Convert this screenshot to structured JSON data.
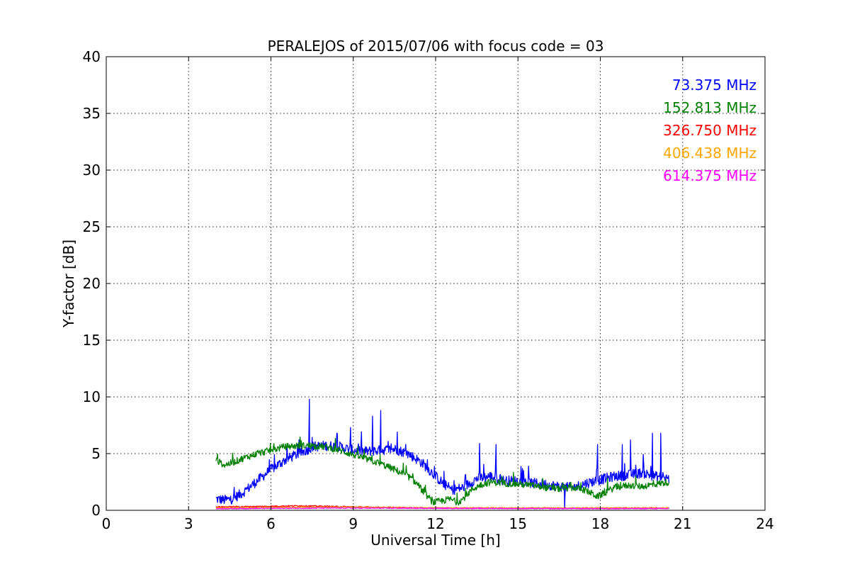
{
  "chart_data": {
    "type": "line",
    "title": "PERALEJOS of 2015/07/06 with focus code = 03",
    "xlabel": "Universal Time [h]",
    "ylabel": "Y-factor [dB]",
    "xlim": [
      0,
      24
    ],
    "ylim": [
      0,
      40
    ],
    "xticks": [
      0,
      3,
      6,
      9,
      12,
      15,
      18,
      21,
      24
    ],
    "yticks": [
      0,
      5,
      10,
      15,
      20,
      25,
      30,
      35,
      40
    ],
    "grid": true,
    "legend_position": "top-right",
    "series": [
      {
        "name": "73.375 MHz",
        "color": "#0000ff",
        "noise": 0.45,
        "x": [
          4.0,
          4.3,
          4.6,
          5.0,
          5.5,
          6.0,
          6.5,
          7.0,
          7.3,
          7.5,
          8.0,
          8.5,
          9.0,
          9.5,
          10.0,
          10.5,
          11.0,
          11.5,
          12.0,
          12.3,
          12.6,
          13.0,
          13.5,
          14.0,
          14.5,
          15.0,
          15.5,
          16.0,
          16.5,
          17.0,
          17.5,
          18.0,
          18.5,
          19.0,
          19.5,
          20.0,
          20.5
        ],
        "y": [
          1.0,
          0.9,
          1.0,
          1.6,
          2.6,
          3.6,
          4.4,
          5.0,
          5.3,
          5.6,
          5.7,
          5.6,
          5.3,
          5.2,
          5.3,
          5.4,
          5.0,
          4.2,
          3.0,
          2.3,
          1.8,
          2.0,
          2.8,
          3.0,
          2.6,
          2.6,
          2.4,
          2.3,
          2.1,
          2.0,
          2.4,
          2.7,
          3.0,
          3.1,
          3.3,
          3.0,
          2.8
        ],
        "spikes": [
          [
            7.4,
            9.8
          ],
          [
            8.4,
            6.8
          ],
          [
            8.9,
            7.3
          ],
          [
            9.7,
            8.3
          ],
          [
            10.0,
            8.8
          ],
          [
            10.6,
            6.9
          ],
          [
            13.6,
            5.9
          ],
          [
            14.2,
            5.8
          ],
          [
            16.7,
            0.2
          ],
          [
            17.9,
            5.8
          ],
          [
            18.8,
            5.8
          ],
          [
            19.1,
            6.2
          ],
          [
            19.9,
            6.8
          ],
          [
            20.2,
            6.8
          ]
        ]
      },
      {
        "name": "152.813 MHz",
        "color": "#008000",
        "noise": 0.3,
        "x": [
          4.0,
          4.3,
          4.6,
          5.0,
          5.5,
          6.0,
          6.5,
          7.0,
          7.5,
          8.0,
          8.5,
          9.0,
          9.5,
          10.0,
          10.5,
          11.0,
          11.3,
          11.6,
          11.9,
          12.2,
          12.5,
          12.8,
          13.0,
          13.3,
          13.6,
          14.0,
          14.5,
          15.0,
          15.5,
          16.0,
          16.5,
          17.0,
          17.3,
          17.6,
          17.9,
          18.2,
          18.5,
          19.0,
          19.5,
          20.0,
          20.5
        ],
        "y": [
          4.4,
          4.0,
          4.2,
          4.6,
          5.0,
          5.3,
          5.6,
          5.7,
          5.7,
          5.6,
          5.3,
          4.9,
          4.5,
          4.1,
          3.6,
          3.0,
          2.4,
          1.5,
          0.7,
          0.8,
          1.0,
          0.7,
          1.0,
          1.8,
          2.2,
          2.5,
          2.4,
          2.3,
          2.2,
          2.0,
          1.9,
          2.0,
          1.9,
          1.6,
          1.2,
          1.6,
          2.0,
          2.2,
          2.1,
          2.3,
          2.5
        ],
        "spikes": []
      },
      {
        "name": "326.750 MHz",
        "color": "#ff0000",
        "noise": 0.05,
        "x": [
          4.0,
          6.0,
          7.0,
          9.0,
          12.0,
          16.0,
          20.5
        ],
        "y": [
          0.3,
          0.35,
          0.4,
          0.3,
          0.2,
          0.2,
          0.2
        ],
        "spikes": []
      },
      {
        "name": "406.438 MHz",
        "color": "#ffa500",
        "noise": 0.04,
        "x": [
          4.0,
          8.0,
          12.0,
          16.0,
          20.5
        ],
        "y": [
          0.22,
          0.28,
          0.22,
          0.2,
          0.2
        ],
        "spikes": []
      },
      {
        "name": "614.375 MHz",
        "color": "#ff00ff",
        "noise": 0.04,
        "x": [
          4.0,
          8.0,
          12.0,
          16.0,
          20.5
        ],
        "y": [
          0.15,
          0.2,
          0.18,
          0.15,
          0.15
        ],
        "spikes": []
      }
    ]
  }
}
